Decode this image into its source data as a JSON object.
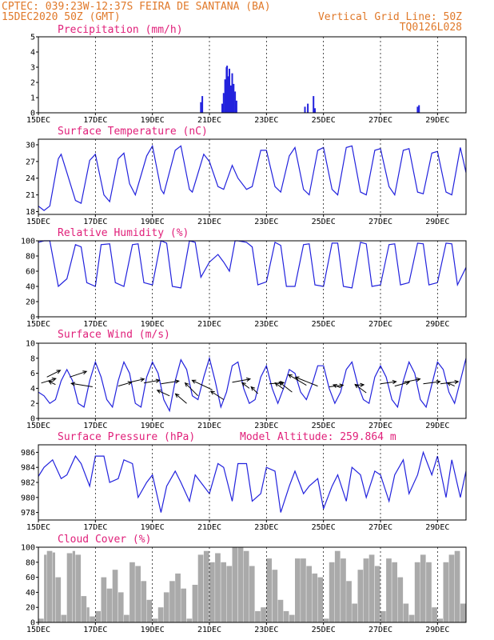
{
  "header": {
    "line1_left": "CPTEC:  039:23W-12:37S  FEIRA DE SANTANA (BA)",
    "line2_left": "15DEC2020 50Z (GMT)",
    "line2_right": "Vertical Grid Line: 50Z",
    "line3_right": "TQ0126L028"
  },
  "colors": {
    "header": "#e0792a",
    "panel_title": "#e0207a",
    "series": "#2222dd",
    "cloud": "#aaaaaa",
    "arrow": "#000000"
  },
  "x_axis": {
    "day_start": 15,
    "day_end": 30,
    "tick_labels": [
      "15DEC",
      "17DEC",
      "19DEC",
      "21DEC",
      "23DEC",
      "25DEC",
      "27DEC",
      "29DEC"
    ],
    "tick_days": [
      15,
      17,
      19,
      21,
      23,
      25,
      27,
      29
    ],
    "grid_days": [
      17,
      19,
      21,
      23,
      25,
      27,
      29
    ]
  },
  "chart_data": [
    {
      "type": "bar",
      "title": "Precipitation (mm/h)",
      "ylim": [
        0,
        5
      ],
      "yticks": [
        0,
        1,
        2,
        3,
        4,
        5
      ],
      "x": [
        20.7,
        20.75,
        21.45,
        21.5,
        21.55,
        21.6,
        21.62,
        21.65,
        21.7,
        21.75,
        21.8,
        21.85,
        21.9,
        21.95,
        24.35,
        24.45,
        24.65,
        24.7,
        28.3,
        28.35
      ],
      "values": [
        0.7,
        1.1,
        0.6,
        1.3,
        2.2,
        3.0,
        3.1,
        2.4,
        2.9,
        1.8,
        2.6,
        1.9,
        1.4,
        0.8,
        0.4,
        0.6,
        1.1,
        0.3,
        0.4,
        0.5
      ]
    },
    {
      "type": "line",
      "title": "Surface Temperature (nC)",
      "ylim": [
        17.5,
        31
      ],
      "yticks": [
        18,
        21,
        24,
        27,
        30
      ],
      "series": [
        {
          "x": [
            15.0,
            15.2,
            15.4,
            15.7,
            15.8,
            16.0,
            16.3,
            16.5,
            16.8,
            17.0,
            17.3,
            17.5,
            17.8,
            18.0,
            18.2,
            18.4,
            18.8,
            19.0,
            19.3,
            19.4,
            19.8,
            20.0,
            20.3,
            20.4,
            20.8,
            21.0,
            21.3,
            21.5,
            21.8,
            22.0,
            22.3,
            22.5,
            22.8,
            23.0,
            23.3,
            23.5,
            23.8,
            24.0,
            24.3,
            24.5,
            24.8,
            25.0,
            25.3,
            25.5,
            25.8,
            26.0,
            26.3,
            26.5,
            26.8,
            27.0,
            27.3,
            27.5,
            27.8,
            28.0,
            28.3,
            28.5,
            28.8,
            29.0,
            29.3,
            29.5,
            29.8,
            30.0
          ],
          "values": [
            19.0,
            18.2,
            19.0,
            27.5,
            28.3,
            25.0,
            20.0,
            19.5,
            27.2,
            28.3,
            21.0,
            19.8,
            27.5,
            28.5,
            23.0,
            21.0,
            28.0,
            29.8,
            22.0,
            21.2,
            29.0,
            29.8,
            22.0,
            21.5,
            28.3,
            27.0,
            22.5,
            22.0,
            26.3,
            24.0,
            22.0,
            22.5,
            29.0,
            29.0,
            22.5,
            21.5,
            28.0,
            29.5,
            22.0,
            21.0,
            29.0,
            29.5,
            22.0,
            21.0,
            29.5,
            29.8,
            21.5,
            21.0,
            29.0,
            29.3,
            22.5,
            21.0,
            29.0,
            29.3,
            21.5,
            21.2,
            28.5,
            28.8,
            21.5,
            21.0,
            29.5,
            25.0
          ]
        }
      ]
    },
    {
      "type": "line",
      "title": "Relative Humidity (%)",
      "ylim": [
        0,
        100
      ],
      "yticks": [
        0,
        20,
        40,
        60,
        80,
        100
      ],
      "series": [
        {
          "x": [
            15.0,
            15.2,
            15.4,
            15.7,
            16.0,
            16.3,
            16.5,
            16.7,
            17.0,
            17.2,
            17.5,
            17.7,
            18.0,
            18.3,
            18.5,
            18.7,
            19.0,
            19.3,
            19.5,
            19.7,
            20.0,
            20.3,
            20.5,
            20.7,
            21.0,
            21.3,
            21.5,
            21.7,
            21.9,
            22.0,
            22.3,
            22.5,
            22.7,
            23.0,
            23.3,
            23.5,
            23.7,
            24.0,
            24.3,
            24.5,
            24.7,
            25.0,
            25.3,
            25.5,
            25.7,
            26.0,
            26.3,
            26.5,
            26.7,
            27.0,
            27.3,
            27.5,
            27.7,
            28.0,
            28.3,
            28.5,
            28.7,
            29.0,
            29.3,
            29.5,
            29.7,
            30.0
          ],
          "values": [
            98,
            100,
            100,
            40,
            50,
            95,
            92,
            45,
            40,
            95,
            96,
            45,
            40,
            95,
            96,
            45,
            42,
            100,
            97,
            40,
            38,
            100,
            98,
            52,
            72,
            82,
            72,
            60,
            100,
            100,
            98,
            92,
            42,
            46,
            98,
            94,
            40,
            40,
            95,
            96,
            42,
            40,
            97,
            97,
            40,
            38,
            98,
            96,
            40,
            42,
            95,
            96,
            42,
            45,
            97,
            96,
            42,
            45,
            97,
            96,
            42,
            65
          ]
        }
      ]
    },
    {
      "type": "line",
      "title": "Surface Wind (m/s)",
      "ylim": [
        0,
        10
      ],
      "yticks": [
        0,
        2,
        4,
        6,
        8,
        10
      ],
      "series": [
        {
          "x": [
            15.0,
            15.2,
            15.4,
            15.6,
            15.8,
            16.0,
            16.2,
            16.4,
            16.6,
            16.8,
            17.0,
            17.2,
            17.4,
            17.6,
            17.8,
            18.0,
            18.2,
            18.4,
            18.6,
            18.8,
            19.0,
            19.2,
            19.4,
            19.6,
            19.8,
            20.0,
            20.2,
            20.4,
            20.6,
            20.8,
            21.0,
            21.2,
            21.4,
            21.6,
            21.8,
            22.0,
            22.2,
            22.4,
            22.6,
            22.8,
            23.0,
            23.2,
            23.4,
            23.6,
            23.8,
            24.0,
            24.2,
            24.4,
            24.6,
            24.8,
            25.0,
            25.2,
            25.4,
            25.6,
            25.8,
            26.0,
            26.2,
            26.4,
            26.6,
            26.8,
            27.0,
            27.2,
            27.4,
            27.6,
            27.8,
            28.0,
            28.2,
            28.4,
            28.6,
            28.8,
            29.0,
            29.2,
            29.4,
            29.6,
            29.8,
            30.0
          ],
          "values": [
            3.5,
            3.0,
            2.0,
            2.5,
            5.0,
            6.5,
            5.0,
            2.0,
            1.5,
            5.0,
            7.5,
            5.5,
            2.5,
            1.5,
            5.0,
            7.5,
            6.0,
            2.0,
            1.5,
            5.5,
            7.5,
            6.0,
            2.5,
            1.0,
            5.0,
            7.8,
            6.5,
            3.0,
            2.5,
            5.5,
            8.0,
            5.0,
            1.5,
            3.5,
            7.0,
            7.5,
            4.0,
            2.0,
            2.5,
            5.5,
            7.0,
            4.0,
            2.0,
            4.0,
            6.5,
            6.0,
            3.5,
            2.5,
            4.5,
            7.0,
            7.0,
            4.0,
            2.0,
            3.5,
            6.5,
            7.5,
            4.5,
            2.5,
            2.0,
            5.5,
            7.0,
            5.5,
            2.5,
            1.5,
            5.0,
            7.5,
            6.0,
            2.5,
            1.5,
            4.5,
            7.5,
            6.5,
            3.5,
            2.0,
            5.0,
            8.0
          ]
        }
      ],
      "vectors": [
        {
          "x": 15.1,
          "y": 4.7,
          "u": 2.6,
          "v": 0.8
        },
        {
          "x": 15.3,
          "y": 5.5,
          "u": 2.4,
          "v": 1.2
        },
        {
          "x": 15.6,
          "y": 4.5,
          "u": -1.2,
          "v": 0.6
        },
        {
          "x": 16.1,
          "y": 5.5,
          "u": 3.0,
          "v": 1.0
        },
        {
          "x": 16.9,
          "y": 4.2,
          "u": -3.8,
          "v": 0.6
        },
        {
          "x": 17.8,
          "y": 4.3,
          "u": 2.4,
          "v": 0.7
        },
        {
          "x": 18.2,
          "y": 4.8,
          "u": 2.6,
          "v": 0.6
        },
        {
          "x": 18.7,
          "y": 4.7,
          "u": 2.8,
          "v": 0.5
        },
        {
          "x": 19.3,
          "y": 4.6,
          "u": 3.2,
          "v": 0.5
        },
        {
          "x": 19.6,
          "y": 3.0,
          "u": -2.2,
          "v": 1.0
        },
        {
          "x": 20.2,
          "y": 2.0,
          "u": -2.0,
          "v": 1.7
        },
        {
          "x": 20.6,
          "y": 3.0,
          "u": -2.3,
          "v": 2.3
        },
        {
          "x": 21.1,
          "y": 3.8,
          "u": -3.6,
          "v": 1.7
        },
        {
          "x": 21.5,
          "y": 2.5,
          "u": -2.3,
          "v": 1.5
        },
        {
          "x": 21.8,
          "y": 4.8,
          "u": 3.2,
          "v": 0.6
        },
        {
          "x": 22.4,
          "y": 4.0,
          "u": -1.3,
          "v": 1.0
        },
        {
          "x": 22.7,
          "y": 3.3,
          "u": -1.2,
          "v": 1.2
        },
        {
          "x": 23.1,
          "y": 4.6,
          "u": 2.6,
          "v": 0.2
        },
        {
          "x": 23.6,
          "y": 3.9,
          "u": -1.5,
          "v": 1.1
        },
        {
          "x": 23.9,
          "y": 3.5,
          "u": -2.3,
          "v": 1.8
        },
        {
          "x": 24.4,
          "y": 4.4,
          "u": -3.2,
          "v": 1.9
        },
        {
          "x": 24.8,
          "y": 4.3,
          "u": -4.0,
          "v": 1.6
        },
        {
          "x": 25.2,
          "y": 4.2,
          "u": 2.5,
          "v": 0.3
        },
        {
          "x": 25.6,
          "y": 4.1,
          "u": -1.3,
          "v": 0.5
        },
        {
          "x": 26.1,
          "y": 4.4,
          "u": 1.6,
          "v": 0.1
        },
        {
          "x": 26.5,
          "y": 3.4,
          "u": -2.0,
          "v": 1.5
        },
        {
          "x": 27.0,
          "y": 4.6,
          "u": 2.8,
          "v": 0.4
        },
        {
          "x": 27.5,
          "y": 4.3,
          "u": 2.6,
          "v": 0.7
        },
        {
          "x": 27.8,
          "y": 4.8,
          "u": 3.0,
          "v": 0.6
        },
        {
          "x": 28.5,
          "y": 4.6,
          "u": 3.0,
          "v": 0.4
        },
        {
          "x": 29.1,
          "y": 4.6,
          "u": 3.2,
          "v": 0.4
        },
        {
          "x": 29.6,
          "y": 4.3,
          "u": -1.3,
          "v": 0.6
        }
      ]
    },
    {
      "type": "line",
      "title": "Surface Pressure (hPa)",
      "annotation": "Model Altitude: 259.864 m",
      "ylim": [
        977,
        987
      ],
      "yticks": [
        978,
        980,
        982,
        984,
        986
      ],
      "series": [
        {
          "x": [
            15.0,
            15.2,
            15.5,
            15.8,
            16.0,
            16.3,
            16.5,
            16.8,
            17.0,
            17.3,
            17.5,
            17.8,
            18.0,
            18.3,
            18.5,
            18.8,
            19.0,
            19.3,
            19.5,
            19.8,
            20.0,
            20.3,
            20.5,
            20.8,
            21.0,
            21.3,
            21.5,
            21.8,
            22.0,
            22.3,
            22.5,
            22.8,
            23.0,
            23.3,
            23.5,
            23.8,
            24.0,
            24.3,
            24.5,
            24.8,
            25.0,
            25.3,
            25.5,
            25.8,
            26.0,
            26.3,
            26.5,
            26.8,
            27.0,
            27.3,
            27.5,
            27.8,
            28.0,
            28.3,
            28.5,
            28.8,
            29.0,
            29.3,
            29.5,
            29.8,
            30.0
          ],
          "values": [
            982.8,
            984.0,
            985.0,
            982.5,
            983.0,
            985.5,
            984.5,
            981.5,
            985.5,
            985.5,
            982.0,
            982.5,
            985.0,
            984.5,
            980.0,
            982.0,
            983.0,
            978.0,
            981.5,
            983.5,
            982.0,
            979.5,
            983.0,
            981.5,
            980.5,
            984.5,
            984.0,
            979.5,
            984.5,
            984.5,
            979.5,
            980.5,
            984.0,
            983.5,
            978.0,
            981.5,
            983.5,
            980.5,
            981.5,
            982.5,
            978.5,
            981.5,
            983.0,
            979.5,
            984.0,
            983.0,
            980.0,
            983.5,
            983.0,
            979.5,
            983.0,
            985.0,
            980.5,
            983.0,
            986.0,
            983.0,
            985.5,
            980.0,
            985.0,
            980.0,
            983.5
          ]
        }
      ]
    },
    {
      "type": "area",
      "title": "Cloud Cover (%)",
      "ylim": [
        0,
        100
      ],
      "yticks": [
        0,
        20,
        40,
        60,
        80,
        100
      ],
      "x": [
        15.0,
        15.2,
        15.3,
        15.5,
        15.6,
        15.8,
        16.0,
        16.2,
        16.3,
        16.5,
        16.7,
        16.8,
        17.0,
        17.2,
        17.4,
        17.6,
        17.8,
        18.0,
        18.2,
        18.4,
        18.6,
        18.8,
        19.0,
        19.2,
        19.4,
        19.6,
        19.8,
        20.0,
        20.2,
        20.4,
        20.6,
        20.8,
        21.0,
        21.2,
        21.4,
        21.6,
        21.8,
        22.0,
        22.2,
        22.4,
        22.6,
        22.8,
        23.0,
        23.2,
        23.4,
        23.6,
        23.8,
        24.0,
        24.2,
        24.4,
        24.6,
        24.8,
        25.0,
        25.2,
        25.4,
        25.6,
        25.8,
        26.0,
        26.2,
        26.4,
        26.6,
        26.8,
        27.0,
        27.2,
        27.4,
        27.6,
        27.8,
        28.0,
        28.2,
        28.4,
        28.6,
        28.8,
        29.0,
        29.2,
        29.4,
        29.6,
        29.8,
        30.0
      ],
      "values": [
        5,
        90,
        95,
        93,
        60,
        10,
        92,
        95,
        90,
        35,
        20,
        8,
        15,
        60,
        45,
        70,
        40,
        10,
        80,
        75,
        55,
        30,
        5,
        20,
        40,
        55,
        65,
        45,
        5,
        50,
        90,
        95,
        80,
        92,
        80,
        75,
        100,
        100,
        95,
        75,
        15,
        20,
        85,
        70,
        30,
        15,
        10,
        85,
        85,
        75,
        65,
        60,
        5,
        80,
        95,
        85,
        55,
        25,
        70,
        85,
        90,
        75,
        15,
        85,
        80,
        60,
        25,
        10,
        80,
        90,
        80,
        20,
        5,
        80,
        90,
        95,
        25,
        10
      ]
    }
  ]
}
